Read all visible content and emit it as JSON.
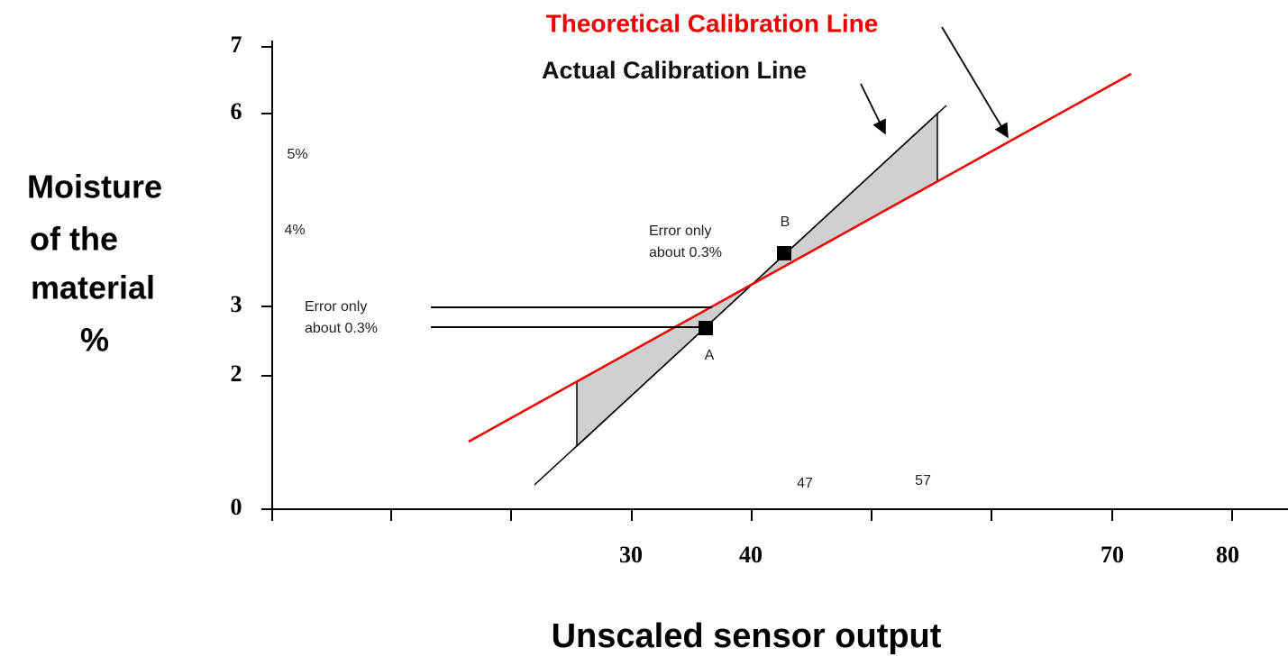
{
  "title": "Theoretical Calibration Line",
  "subtitle": "Actual Calibration Line",
  "y_axis": {
    "label": [
      "Moisture",
      "of the",
      "material",
      "%"
    ],
    "ticks": [
      "7",
      "6",
      "3",
      "2",
      "0"
    ]
  },
  "x_axis": {
    "label": "Unscaled sensor output",
    "ticks": [
      "30",
      "40",
      "70",
      "80"
    ]
  },
  "stray_labels": [
    "5%",
    "4%",
    "47",
    "57"
  ],
  "annotations": {
    "left": [
      "Error only",
      "about 0.3%"
    ],
    "right": [
      "Error only",
      "about 0.3%"
    ]
  },
  "points": {
    "a": "A",
    "b": "B"
  }
}
